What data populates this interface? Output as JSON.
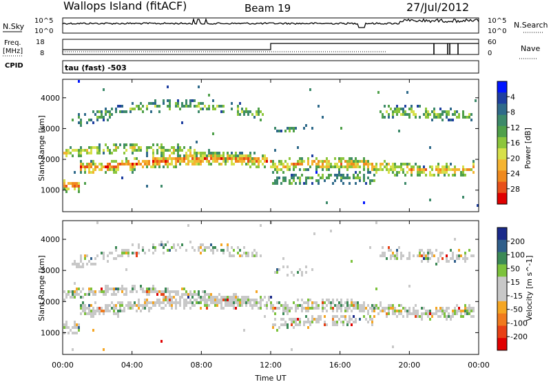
{
  "header": {
    "station": "Wallops Island (fitACF)",
    "beam": "Beam 19",
    "date": "27/Jul/2012"
  },
  "panels": {
    "nsky": {
      "label": "N.Sky",
      "ytick_top": "10^5",
      "ytick_bot": "10^0",
      "rtick_top": "10^5",
      "rtick_bot": "10^0",
      "right_label": "N.Search"
    },
    "freq": {
      "label_line1": "Freq.",
      "label_line2": "[MHz]",
      "cpid": "CPID",
      "ytick_top": "18",
      "ytick_bot": "8",
      "rtick_top": "60",
      "rtick_bot": "0",
      "right_label": "Nave"
    },
    "mode": "tau (fast) -503"
  },
  "chart_data": [
    {
      "type": "heatmap",
      "title": "",
      "ylabel": "Slant Range [km]",
      "xlabel": "Time UT",
      "ylim": [
        300,
        4600
      ],
      "yticks": [
        "1000",
        "2000",
        "3000",
        "4000"
      ],
      "xticks": [
        "00:00",
        "04:00",
        "08:00",
        "12:00",
        "16:00",
        "20:00",
        "00:00"
      ],
      "colorbar": {
        "label": "Power [dB]",
        "ticks": [
          "4",
          "8",
          "12",
          "16",
          "20",
          "24",
          "28"
        ],
        "colors": [
          "#0015ff",
          "#1e3fa0",
          "#2f6a8a",
          "#3d8a6a",
          "#4fa04a",
          "#8cc63c",
          "#d7e04a",
          "#f5b431",
          "#f08a1e",
          "#e8501a",
          "#e00000"
        ]
      }
    },
    {
      "type": "heatmap",
      "title": "",
      "ylabel": "Slant Range [km]",
      "xlabel": "Time UT",
      "ylim": [
        300,
        4600
      ],
      "yticks": [
        "1000",
        "2000",
        "3000",
        "4000"
      ],
      "xticks": [
        "00:00",
        "04:00",
        "08:00",
        "12:00",
        "16:00",
        "20:00",
        "00:00"
      ],
      "colorbar": {
        "label": "Velocity [m s^-1]",
        "ticks": [
          "200",
          "100",
          "50",
          "15",
          "-15",
          "-50",
          "-100",
          "-200"
        ],
        "colors": [
          "#1a2a8a",
          "#2f5e8a",
          "#3c8a56",
          "#7cc23c",
          "#c8c8c8",
          "#c8c8c8",
          "#f5a623",
          "#f07a1e",
          "#e84015",
          "#e00000"
        ]
      }
    }
  ],
  "axis": {
    "time_label": "Time UT"
  }
}
